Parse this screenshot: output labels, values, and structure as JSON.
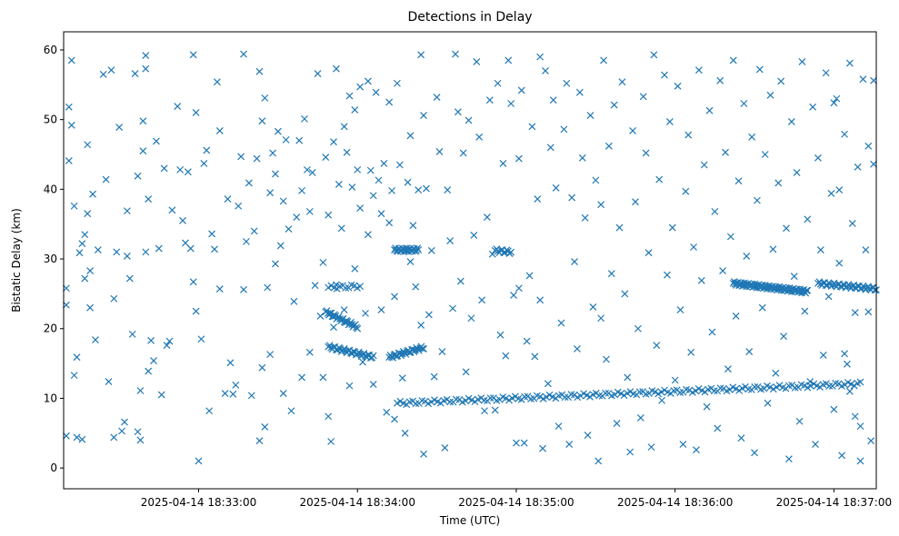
{
  "chart_data": {
    "type": "scatter",
    "title": "Detections in Delay",
    "xlabel": "Time (UTC)",
    "ylabel": "Bistatic Delay (km)",
    "marker": "x",
    "color": "#1f77b4",
    "grid": false,
    "legend": "none",
    "x_unit": "seconds after 2025-04-14 18:32:30 UTC",
    "xlim": [
      -21,
      286
    ],
    "ylim": [
      -2.98,
      62.6
    ],
    "xticks": [
      {
        "value": 30,
        "label": "2025-04-14 18:33:00"
      },
      {
        "value": 90,
        "label": "2025-04-14 18:34:00"
      },
      {
        "value": 150,
        "label": "2025-04-14 18:35:00"
      },
      {
        "value": 210,
        "label": "2025-04-14 18:36:00"
      },
      {
        "value": 270,
        "label": "2025-04-14 18:37:00"
      }
    ],
    "yticks": [
      0,
      10,
      20,
      30,
      40,
      50,
      60
    ],
    "tracks": [
      {
        "x_start": 78,
        "x_end": 90,
        "y_start": 22.4,
        "y_end": 20.2,
        "count": 30
      },
      {
        "x_start": 79,
        "x_end": 96,
        "y_start": 17.4,
        "y_end": 15.9,
        "count": 35
      },
      {
        "x_start": 102,
        "x_end": 115,
        "y_start": 15.9,
        "y_end": 17.3,
        "count": 30
      },
      {
        "x_start": 105,
        "x_end": 280,
        "y_start": 9.3,
        "y_end": 12.1,
        "count": 150
      },
      {
        "x_start": 232,
        "x_end": 260,
        "y_start": 26.5,
        "y_end": 25.3,
        "count": 80
      },
      {
        "x_start": 264,
        "x_end": 286,
        "y_start": 26.5,
        "y_end": 25.7,
        "count": 45
      },
      {
        "x_start": 104,
        "x_end": 113,
        "y_start": 31.3,
        "y_end": 31.3,
        "count": 25
      },
      {
        "x_start": 142,
        "x_end": 148,
        "y_start": 31.2,
        "y_end": 31.0,
        "count": 12
      },
      {
        "x_start": 79,
        "x_end": 91,
        "y_start": 25.9,
        "y_end": 26.1,
        "count": 12
      }
    ],
    "scatter_points": [
      [
        -20,
        25.8
      ],
      [
        -20,
        23.4
      ],
      [
        -20,
        4.6
      ],
      [
        -19,
        51.8
      ],
      [
        -19,
        44.1
      ],
      [
        -18,
        58.5
      ],
      [
        -18,
        49.2
      ],
      [
        -17,
        13.3
      ],
      [
        -17,
        37.6
      ],
      [
        -16,
        15.9
      ],
      [
        -16,
        4.4
      ],
      [
        -15,
        30.9
      ],
      [
        -14,
        32.2
      ],
      [
        -14,
        4.1
      ],
      [
        -13,
        27.2
      ],
      [
        -13,
        33.5
      ],
      [
        -12,
        46.4
      ],
      [
        -12,
        36.5
      ],
      [
        -11,
        28.3
      ],
      [
        -11,
        23.0
      ],
      [
        -10,
        39.3
      ],
      [
        -9,
        18.4
      ],
      [
        -8,
        31.3
      ],
      [
        -6,
        56.5
      ],
      [
        -5,
        41.4
      ],
      [
        -4,
        12.4
      ],
      [
        -3,
        57.1
      ],
      [
        -2,
        24.3
      ],
      [
        -2,
        4.4
      ],
      [
        -1,
        31.0
      ],
      [
        0,
        48.9
      ],
      [
        1,
        5.3
      ],
      [
        2,
        6.6
      ],
      [
        3,
        36.9
      ],
      [
        3,
        30.4
      ],
      [
        4,
        27.2
      ],
      [
        5,
        19.2
      ],
      [
        6,
        56.6
      ],
      [
        7,
        5.2
      ],
      [
        7,
        41.9
      ],
      [
        8,
        11.1
      ],
      [
        8,
        4.0
      ],
      [
        9,
        45.5
      ],
      [
        9,
        49.8
      ],
      [
        10,
        31.0
      ],
      [
        10,
        59.2
      ],
      [
        10,
        57.3
      ],
      [
        11,
        13.9
      ],
      [
        11,
        38.6
      ],
      [
        12,
        18.3
      ],
      [
        13,
        15.4
      ],
      [
        14,
        46.9
      ],
      [
        15,
        31.5
      ],
      [
        16,
        10.5
      ],
      [
        17,
        43.0
      ],
      [
        18,
        17.6
      ],
      [
        19,
        18.2
      ],
      [
        20,
        37.0
      ],
      [
        22,
        51.9
      ],
      [
        23,
        42.8
      ],
      [
        24,
        35.5
      ],
      [
        25,
        32.3
      ],
      [
        26,
        42.5
      ],
      [
        27,
        31.5
      ],
      [
        28,
        59.3
      ],
      [
        28,
        26.7
      ],
      [
        29,
        51.0
      ],
      [
        29,
        22.5
      ],
      [
        30,
        1.0
      ],
      [
        31,
        18.5
      ],
      [
        32,
        43.7
      ],
      [
        33,
        45.6
      ],
      [
        34,
        8.2
      ],
      [
        35,
        33.6
      ],
      [
        36,
        31.4
      ],
      [
        37,
        55.4
      ],
      [
        38,
        48.4
      ],
      [
        38,
        25.7
      ],
      [
        40,
        10.7
      ],
      [
        41,
        38.6
      ],
      [
        42,
        15.1
      ],
      [
        43,
        10.6
      ],
      [
        44,
        11.9
      ],
      [
        45,
        37.6
      ],
      [
        46,
        44.7
      ],
      [
        47,
        59.4
      ],
      [
        47,
        25.6
      ],
      [
        48,
        32.5
      ],
      [
        49,
        40.9
      ],
      [
        50,
        10.4
      ],
      [
        51,
        34.0
      ],
      [
        52,
        44.4
      ],
      [
        53,
        56.9
      ],
      [
        53,
        3.9
      ],
      [
        54,
        49.8
      ],
      [
        54,
        14.4
      ],
      [
        55,
        53.1
      ],
      [
        55,
        5.9
      ],
      [
        56,
        25.9
      ],
      [
        57,
        39.5
      ],
      [
        57,
        16.3
      ],
      [
        58,
        45.2
      ],
      [
        59,
        42.2
      ],
      [
        59,
        29.3
      ],
      [
        60,
        48.3
      ],
      [
        61,
        31.9
      ],
      [
        62,
        38.3
      ],
      [
        62,
        10.7
      ],
      [
        63,
        47.1
      ],
      [
        64,
        34.3
      ],
      [
        65,
        8.2
      ],
      [
        66,
        23.9
      ],
      [
        67,
        36.0
      ],
      [
        68,
        47.0
      ],
      [
        69,
        39.8
      ],
      [
        69,
        13.0
      ],
      [
        70,
        50.1
      ],
      [
        71,
        42.8
      ],
      [
        72,
        36.8
      ],
      [
        72,
        16.6
      ],
      [
        73,
        42.4
      ],
      [
        74,
        26.2
      ],
      [
        75,
        56.6
      ],
      [
        76,
        21.8
      ],
      [
        77,
        29.5
      ],
      [
        77,
        13.0
      ],
      [
        78,
        44.6
      ],
      [
        79,
        36.3
      ],
      [
        79,
        7.4
      ],
      [
        80,
        3.8
      ],
      [
        81,
        46.8
      ],
      [
        81,
        20.2
      ],
      [
        82,
        57.3
      ],
      [
        82,
        26.3
      ],
      [
        83,
        40.7
      ],
      [
        84,
        34.4
      ],
      [
        85,
        49.0
      ],
      [
        85,
        22.7
      ],
      [
        86,
        45.3
      ],
      [
        87,
        53.4
      ],
      [
        87,
        11.8
      ],
      [
        88,
        40.3
      ],
      [
        89,
        51.4
      ],
      [
        89,
        28.6
      ],
      [
        90,
        42.8
      ],
      [
        91,
        54.7
      ],
      [
        91,
        37.3
      ],
      [
        92,
        15.2
      ],
      [
        93,
        22.2
      ],
      [
        94,
        55.5
      ],
      [
        94,
        33.5
      ],
      [
        95,
        42.7
      ],
      [
        96,
        39.1
      ],
      [
        96,
        12.0
      ],
      [
        97,
        53.9
      ],
      [
        98,
        41.3
      ],
      [
        99,
        36.5
      ],
      [
        99,
        22.7
      ],
      [
        100,
        43.7
      ],
      [
        101,
        8.0
      ],
      [
        102,
        52.5
      ],
      [
        102,
        35.2
      ],
      [
        103,
        39.8
      ],
      [
        104,
        24.6
      ],
      [
        104,
        7.0
      ],
      [
        105,
        55.2
      ],
      [
        106,
        43.5
      ],
      [
        107,
        12.9
      ],
      [
        108,
        5.0
      ],
      [
        109,
        41.0
      ],
      [
        110,
        47.7
      ],
      [
        110,
        29.6
      ],
      [
        111,
        34.8
      ],
      [
        112,
        26.0
      ],
      [
        113,
        39.9
      ],
      [
        114,
        59.3
      ],
      [
        114,
        20.5
      ],
      [
        115,
        50.6
      ],
      [
        115,
        2.0
      ],
      [
        116,
        40.1
      ],
      [
        117,
        22.0
      ],
      [
        118,
        31.2
      ],
      [
        119,
        13.1
      ],
      [
        120,
        53.2
      ],
      [
        121,
        45.4
      ],
      [
        122,
        16.7
      ],
      [
        123,
        2.9
      ],
      [
        124,
        39.9
      ],
      [
        125,
        32.6
      ],
      [
        126,
        22.9
      ],
      [
        127,
        59.4
      ],
      [
        128,
        51.1
      ],
      [
        129,
        26.8
      ],
      [
        130,
        45.2
      ],
      [
        131,
        13.8
      ],
      [
        132,
        49.9
      ],
      [
        133,
        21.5
      ],
      [
        134,
        33.4
      ],
      [
        135,
        58.3
      ],
      [
        136,
        47.5
      ],
      [
        137,
        24.1
      ],
      [
        138,
        8.2
      ],
      [
        139,
        36.0
      ],
      [
        140,
        52.8
      ],
      [
        141,
        30.7
      ],
      [
        142,
        8.3
      ],
      [
        143,
        55.2
      ],
      [
        144,
        19.1
      ],
      [
        145,
        43.7
      ],
      [
        146,
        16.1
      ],
      [
        147,
        58.5
      ],
      [
        148,
        52.3
      ],
      [
        149,
        24.8
      ],
      [
        150,
        3.6
      ],
      [
        151,
        44.4
      ],
      [
        151,
        25.8
      ],
      [
        152,
        54.2
      ],
      [
        153,
        3.6
      ],
      [
        154,
        18.2
      ],
      [
        155,
        27.6
      ],
      [
        156,
        49.0
      ],
      [
        157,
        16.0
      ],
      [
        158,
        38.6
      ],
      [
        159,
        59.0
      ],
      [
        159,
        24.1
      ],
      [
        160,
        2.8
      ],
      [
        161,
        57.0
      ],
      [
        162,
        12.1
      ],
      [
        163,
        46.0
      ],
      [
        164,
        52.8
      ],
      [
        165,
        40.2
      ],
      [
        166,
        6.0
      ],
      [
        167,
        20.8
      ],
      [
        168,
        48.6
      ],
      [
        169,
        55.2
      ],
      [
        170,
        3.4
      ],
      [
        171,
        38.8
      ],
      [
        172,
        29.6
      ],
      [
        173,
        17.1
      ],
      [
        174,
        53.9
      ],
      [
        175,
        44.5
      ],
      [
        176,
        35.9
      ],
      [
        177,
        4.7
      ],
      [
        178,
        50.6
      ],
      [
        179,
        23.1
      ],
      [
        180,
        41.3
      ],
      [
        181,
        1.0
      ],
      [
        182,
        37.8
      ],
      [
        182,
        21.5
      ],
      [
        183,
        58.5
      ],
      [
        184,
        15.6
      ],
      [
        185,
        46.2
      ],
      [
        186,
        27.9
      ],
      [
        187,
        52.1
      ],
      [
        188,
        6.4
      ],
      [
        189,
        34.5
      ],
      [
        190,
        55.4
      ],
      [
        191,
        25.0
      ],
      [
        192,
        13.0
      ],
      [
        193,
        2.3
      ],
      [
        194,
        48.4
      ],
      [
        195,
        38.2
      ],
      [
        196,
        20.0
      ],
      [
        197,
        7.2
      ],
      [
        198,
        53.3
      ],
      [
        199,
        45.2
      ],
      [
        200,
        30.9
      ],
      [
        201,
        3.0
      ],
      [
        202,
        59.3
      ],
      [
        203,
        17.6
      ],
      [
        204,
        41.4
      ],
      [
        205,
        9.7
      ],
      [
        206,
        56.4
      ],
      [
        207,
        27.7
      ],
      [
        208,
        49.7
      ],
      [
        209,
        34.5
      ],
      [
        210,
        12.6
      ],
      [
        211,
        54.8
      ],
      [
        212,
        22.7
      ],
      [
        213,
        3.4
      ],
      [
        214,
        39.7
      ],
      [
        215,
        47.8
      ],
      [
        216,
        16.6
      ],
      [
        217,
        31.7
      ],
      [
        218,
        2.6
      ],
      [
        219,
        57.1
      ],
      [
        220,
        26.9
      ],
      [
        221,
        43.5
      ],
      [
        222,
        8.8
      ],
      [
        223,
        51.3
      ],
      [
        224,
        19.5
      ],
      [
        225,
        36.8
      ],
      [
        226,
        5.7
      ],
      [
        227,
        55.6
      ],
      [
        228,
        28.3
      ],
      [
        229,
        45.3
      ],
      [
        230,
        14.2
      ],
      [
        231,
        33.2
      ],
      [
        232,
        58.5
      ],
      [
        233,
        21.8
      ],
      [
        234,
        41.2
      ],
      [
        235,
        4.3
      ],
      [
        236,
        52.3
      ],
      [
        237,
        30.4
      ],
      [
        238,
        16.7
      ],
      [
        239,
        47.5
      ],
      [
        240,
        2.2
      ],
      [
        241,
        38.4
      ],
      [
        242,
        57.2
      ],
      [
        243,
        23.0
      ],
      [
        244,
        45.0
      ],
      [
        245,
        9.3
      ],
      [
        246,
        53.5
      ],
      [
        247,
        31.4
      ],
      [
        248,
        13.6
      ],
      [
        249,
        40.9
      ],
      [
        250,
        55.5
      ],
      [
        251,
        18.9
      ],
      [
        252,
        34.4
      ],
      [
        253,
        1.3
      ],
      [
        254,
        49.7
      ],
      [
        255,
        27.5
      ],
      [
        256,
        42.4
      ],
      [
        257,
        6.7
      ],
      [
        258,
        58.3
      ],
      [
        259,
        22.5
      ],
      [
        260,
        35.7
      ],
      [
        261,
        12.4
      ],
      [
        262,
        51.8
      ],
      [
        263,
        3.4
      ],
      [
        264,
        44.5
      ],
      [
        265,
        31.3
      ],
      [
        266,
        16.2
      ],
      [
        267,
        56.7
      ],
      [
        268,
        24.6
      ],
      [
        269,
        39.4
      ],
      [
        270,
        8.4
      ],
      [
        271,
        53.0
      ],
      [
        272,
        29.4
      ],
      [
        273,
        1.8
      ],
      [
        274,
        47.9
      ],
      [
        275,
        14.9
      ],
      [
        276,
        58.1
      ],
      [
        277,
        35.1
      ],
      [
        278,
        22.3
      ],
      [
        279,
        43.2
      ],
      [
        280,
        6.0
      ],
      [
        281,
        55.8
      ],
      [
        282,
        31.3
      ],
      [
        283,
        46.2
      ],
      [
        284,
        3.9
      ],
      [
        285,
        43.6
      ],
      [
        285,
        55.6
      ],
      [
        283,
        22.4
      ],
      [
        280,
        1.0
      ],
      [
        278,
        7.4
      ],
      [
        276,
        11.0
      ],
      [
        274,
        16.4
      ],
      [
        272,
        39.9
      ],
      [
        270,
        52.4
      ]
    ]
  }
}
